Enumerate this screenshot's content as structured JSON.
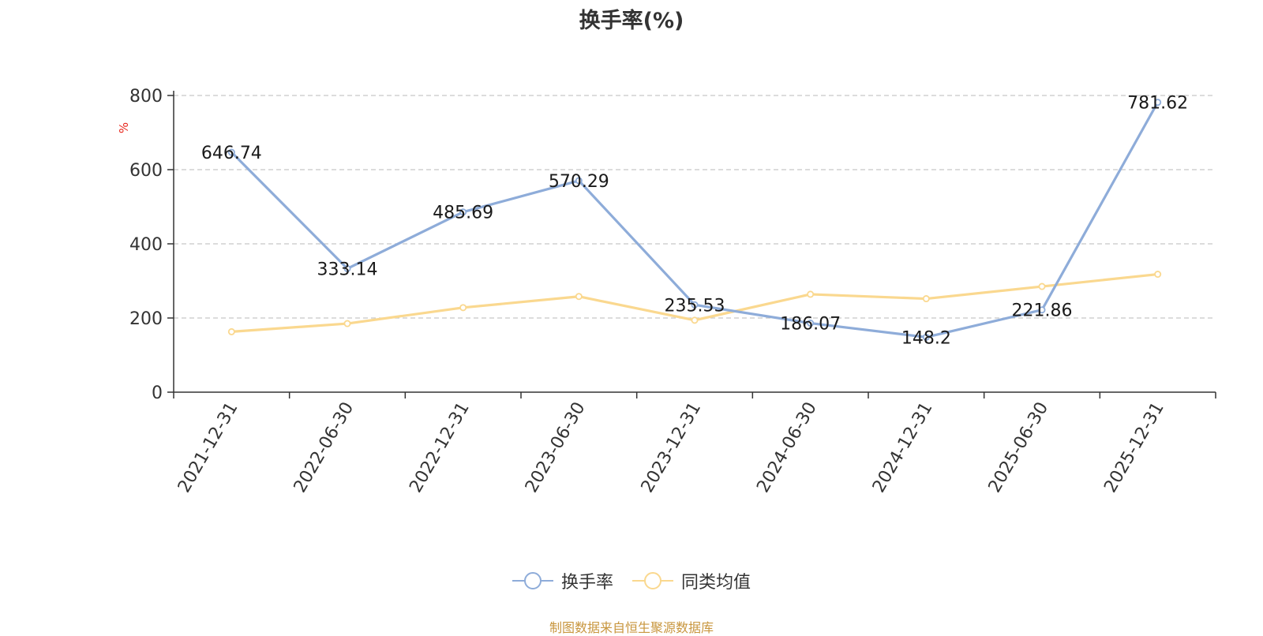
{
  "title": "换手率(%)",
  "source_note": "制图数据来自恒生聚源数据库",
  "chart_data": {
    "type": "line",
    "title": "换手率(%)",
    "xlabel": "",
    "ylabel": "%",
    "ylim": [
      0,
      800
    ],
    "yticks": [
      0,
      200,
      400,
      600,
      800
    ],
    "grid": true,
    "legend_position": "bottom",
    "categories": [
      "2021-12-31",
      "2022-06-30",
      "2022-12-31",
      "2023-06-30",
      "2023-12-31",
      "2024-06-30",
      "2024-12-31",
      "2025-06-30",
      "2025-12-31"
    ],
    "series": [
      {
        "name": "换手率",
        "color": "#8eacd9",
        "values": [
          646.74,
          333.14,
          485.69,
          570.29,
          235.53,
          186.07,
          148.2,
          221.86,
          781.62
        ],
        "labels": [
          "646.74",
          "333.14",
          "485.69",
          "570.29",
          "235.53",
          "186.07",
          "148.2",
          "221.86",
          "781.62"
        ]
      },
      {
        "name": "同类均值",
        "color": "#fad88f",
        "values": [
          163,
          185,
          228,
          258,
          194,
          264,
          252,
          285,
          318
        ]
      }
    ]
  }
}
